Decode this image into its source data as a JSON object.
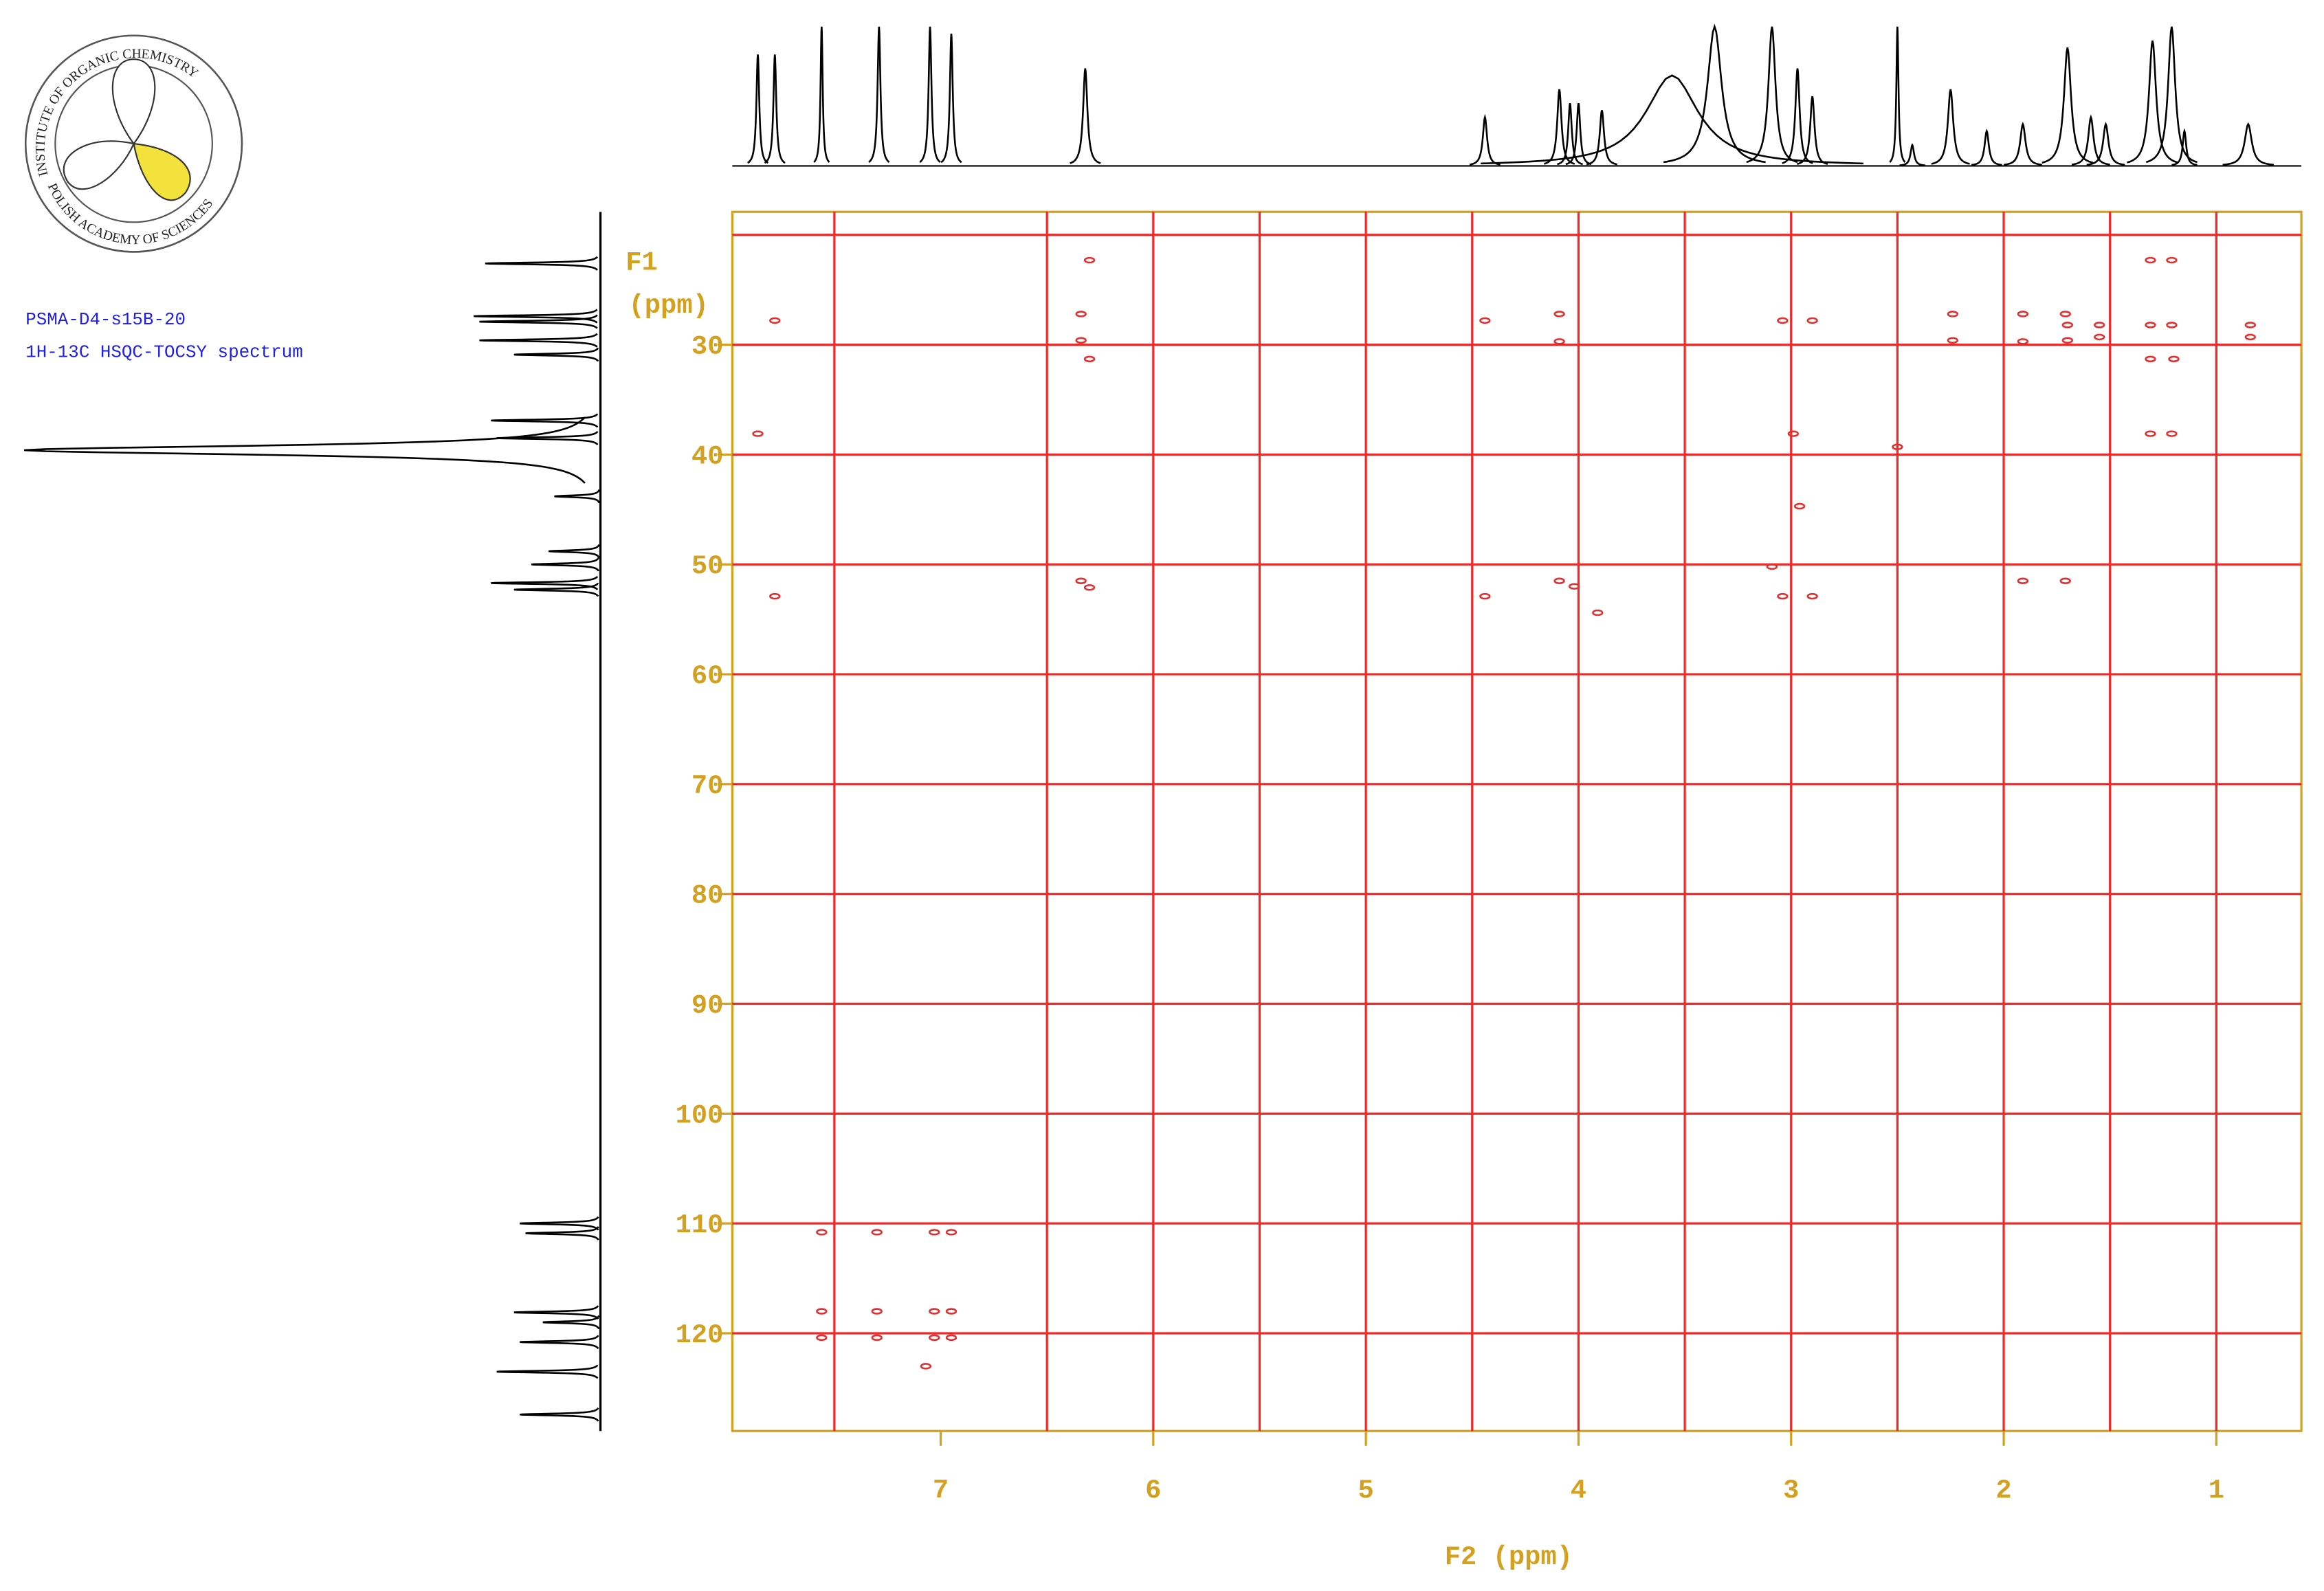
{
  "logo": {
    "top_text": "INSTITUTE OF ORGANIC CHEMISTRY",
    "bottom_text": "POLISH ACADEMY OF SCIENCES"
  },
  "sample": "PSMA-D4-s15B-20",
  "experiment": "1H-13C HSQC-TOCSY spectrum",
  "chart_data": {
    "type": "nmr2d",
    "x_label": "F2 (ppm)",
    "y_label": [
      "F1",
      "(ppm)"
    ],
    "xlim": [
      7.98,
      0.6
    ],
    "ylim": [
      17.9,
      128.9
    ],
    "xticks": [
      7,
      6,
      5,
      4,
      3,
      2,
      1
    ],
    "yticks": [
      30,
      40,
      50,
      60,
      70,
      80,
      90,
      100,
      110,
      120
    ],
    "xgrid": [
      7.5,
      6.5,
      6,
      5.5,
      5,
      4.5,
      4,
      3.5,
      3,
      2.5,
      2,
      1.5,
      1
    ],
    "ygrid": [
      20,
      30,
      40,
      50,
      60,
      70,
      80,
      90,
      100,
      110,
      120
    ],
    "axis_color": "#d4a020",
    "grid_color": "#f02828",
    "peaks": {
      "color": "#e03030",
      "x": [
        6.3,
        1.31,
        1.21,
        7.78,
        6.34,
        4.44,
        4.09,
        3.04,
        2.9,
        2.24,
        2.24,
        1.91,
        1.71,
        1.7,
        1.7,
        1.91,
        1.55,
        1.55,
        1.31,
        1.21,
        1.2,
        1.31,
        0.84,
        0.84,
        6.34,
        6.3,
        4.09,
        7.86,
        2.99,
        1.31,
        1.21,
        2.5,
        2.96,
        3.09,
        6.34,
        6.3,
        4.09,
        4.02,
        1.91,
        1.71,
        7.78,
        4.44,
        3.04,
        2.9,
        3.91,
        7.56,
        7.3,
        7.03,
        6.95,
        7.56,
        7.3,
        7.03,
        6.95,
        7.56,
        7.3,
        7.03,
        6.95,
        7.07
      ],
      "y": [
        22.3,
        22.3,
        22.3,
        27.8,
        27.2,
        27.8,
        27.2,
        27.8,
        27.8,
        27.2,
        29.6,
        27.2,
        27.2,
        28.2,
        29.6,
        29.7,
        28.2,
        29.3,
        28.2,
        28.2,
        31.3,
        31.3,
        28.2,
        29.3,
        29.6,
        31.3,
        29.7,
        38.1,
        38.1,
        38.1,
        38.1,
        39.3,
        44.7,
        50.2,
        51.5,
        52.1,
        51.5,
        52.0,
        51.5,
        51.5,
        52.9,
        52.9,
        52.9,
        52.9,
        54.4,
        110.8,
        110.8,
        110.8,
        110.8,
        118.0,
        118.0,
        118.0,
        118.0,
        120.4,
        120.4,
        120.4,
        120.4,
        123.0
      ]
    },
    "f2_projection": {
      "color": "#000000",
      "ppm": [
        7.86,
        7.78,
        7.56,
        7.29,
        7.05,
        6.95,
        6.32,
        4.44,
        4.09,
        4.04,
        4.0,
        3.89,
        3.56,
        3.36,
        3.09,
        2.97,
        2.9,
        2.5,
        2.43,
        2.25,
        2.08,
        1.91,
        1.7,
        1.59,
        1.52,
        1.3,
        1.21,
        1.15,
        0.85
      ],
      "heights": [
        80,
        80,
        100,
        100,
        100,
        95,
        70,
        35,
        55,
        45,
        45,
        40,
        65,
        100,
        100,
        70,
        50,
        100,
        15,
        55,
        25,
        30,
        85,
        35,
        30,
        90,
        100,
        25,
        30
      ],
      "widths": [
        0.008,
        0.008,
        0.006,
        0.008,
        0.008,
        0.008,
        0.012,
        0.012,
        0.012,
        0.01,
        0.01,
        0.012,
        0.15,
        0.04,
        0.02,
        0.012,
        0.012,
        0.006,
        0.01,
        0.015,
        0.012,
        0.015,
        0.02,
        0.015,
        0.015,
        0.02,
        0.02,
        0.01,
        0.02
      ]
    },
    "f1_projection": {
      "color": "#000000",
      "ppm": [
        22.6,
        27.4,
        27.9,
        29.6,
        30.9,
        36.9,
        38.5,
        39.6,
        43.8,
        48.8,
        50.0,
        51.7,
        52.3,
        110.0,
        110.9,
        118.1,
        119.0,
        120.8,
        123.5,
        127.4
      ],
      "heights": [
        20,
        22,
        21,
        21,
        15,
        19,
        18,
        100,
        8,
        9,
        12,
        19,
        15,
        14,
        13,
        15,
        10,
        14,
        18,
        14
      ],
      "widths": [
        0.1,
        0.1,
        0.1,
        0.1,
        0.1,
        0.1,
        0.1,
        0.5,
        0.1,
        0.1,
        0.1,
        0.1,
        0.1,
        0.1,
        0.1,
        0.1,
        0.1,
        0.1,
        0.1,
        0.1
      ]
    }
  }
}
